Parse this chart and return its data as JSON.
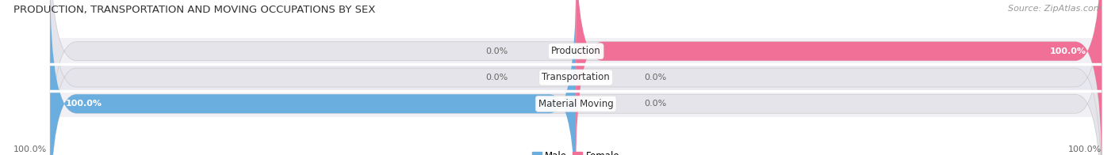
{
  "title": "PRODUCTION, TRANSPORTATION AND MOVING OCCUPATIONS BY SEX",
  "source": "Source: ZipAtlas.com",
  "categories": [
    "Material Moving",
    "Transportation",
    "Production"
  ],
  "male_values": [
    100.0,
    0.0,
    0.0
  ],
  "female_values": [
    0.0,
    0.0,
    100.0
  ],
  "male_color": "#6aaee0",
  "female_color": "#f07098",
  "bar_bg_color": "#e8e8ec",
  "bar_height": 0.72,
  "label_left": [
    "100.0%",
    "0.0%",
    "0.0%"
  ],
  "label_right": [
    "0.0%",
    "0.0%",
    "100.0%"
  ],
  "title_fontsize": 9.5,
  "source_fontsize": 8,
  "label_fontsize": 8,
  "cat_label_fontsize": 8.5,
  "axis_label_left": "100.0%",
  "axis_label_right": "100.0%",
  "figsize": [
    14.06,
    1.96
  ],
  "dpi": 100,
  "bg_color": "#f5f5f8"
}
